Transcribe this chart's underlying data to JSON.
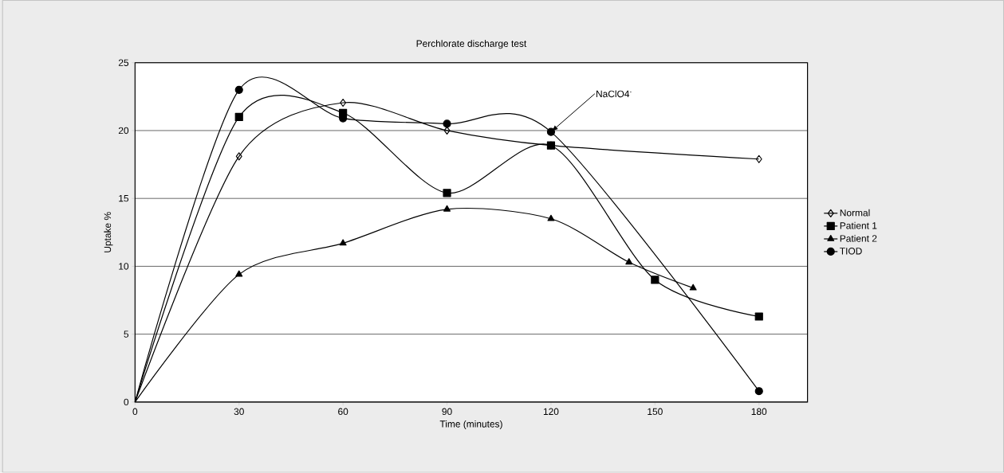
{
  "chart_data": {
    "type": "line",
    "title": "Perchlorate discharge test",
    "xlabel": "Time (minutes)",
    "ylabel": "Uptake %",
    "xlim": [
      0,
      194
    ],
    "ylim": [
      0,
      25
    ],
    "xticks": [
      0,
      30,
      60,
      90,
      120,
      150,
      180
    ],
    "yticks": [
      0,
      5,
      10,
      15,
      20,
      25
    ],
    "grid": "y",
    "legend": "right",
    "line_style": "solid",
    "annotations": [
      {
        "text": "NaClO4$^{-}$",
        "x": 120,
        "y": 19.9
      }
    ],
    "series": [
      {
        "name": "Normal",
        "color": "#000000",
        "marker": "diamond",
        "x": [
          0,
          30,
          60,
          90,
          120,
          180
        ],
        "values": [
          0,
          18.1,
          22.05,
          20,
          18.9,
          17.9
        ]
      },
      {
        "name": "Patient 1",
        "color": "#000000",
        "marker": "square",
        "x": [
          0,
          30,
          60,
          90,
          120,
          150,
          180
        ],
        "values": [
          0,
          21,
          21.3,
          15.4,
          18.9,
          9,
          6.3
        ]
      },
      {
        "name": "Patient 2",
        "color": "#000000",
        "marker": "triangle",
        "x": [
          0,
          30,
          60,
          90,
          120,
          142.5,
          161
        ],
        "values": [
          0,
          9.4,
          11.7,
          14.2,
          13.5,
          10.3,
          8.4
        ]
      },
      {
        "name": "TIOD",
        "color": "#000000",
        "marker": "circle",
        "x": [
          0,
          30,
          60,
          90,
          120,
          180
        ],
        "values": [
          0,
          23,
          20.9,
          20.5,
          19.9,
          0.8
        ]
      }
    ]
  }
}
